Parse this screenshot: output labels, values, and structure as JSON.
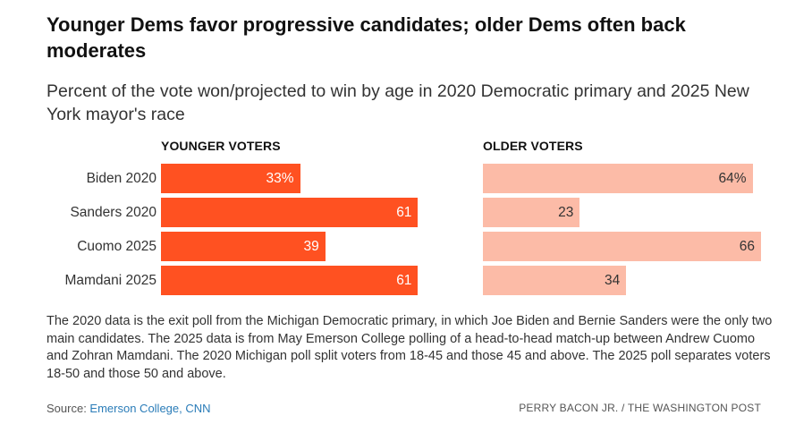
{
  "title": "Younger Dems favor progressive candidates; older Dems often back moderates",
  "subtitle": "Percent of the vote won/projected to win by age in 2020 Democratic primary and 2025 New York mayor's race",
  "footnote": "The 2020 data is the exit poll from the Michigan Democratic primary, in which Joe Biden and Bernie Sanders were the only two main candidates. The 2025 data is from May Emerson College polling of a head-to-head match-up between Andrew Cuomo and Zohran Mamdani. The 2020 Michigan poll split voters from 18-45 and those 45 and above. The 2025 poll separates voters 18-50 and those 50 and above.",
  "source_prefix": "Source: ",
  "source_link": "Emerson College, CNN",
  "credit": "PERRY BACON JR. / THE WASHINGTON POST",
  "colors": {
    "younger": "#ff5121",
    "older": "#fcbba7",
    "link": "#2a7cb8"
  },
  "chart_data": {
    "type": "bar",
    "orientation": "horizontal",
    "categories": [
      "Biden 2020",
      "Sanders 2020",
      "Cuomo 2025",
      "Mamdani 2025"
    ],
    "series": [
      {
        "name": "YOUNGER VOTERS",
        "values": [
          33,
          61,
          39,
          61
        ],
        "labels": [
          "33%",
          "61",
          "39",
          "61"
        ]
      },
      {
        "name": "OLDER VOTERS",
        "values": [
          64,
          23,
          66,
          34
        ],
        "labels": [
          "64%",
          "23",
          "66",
          "34"
        ]
      }
    ],
    "unit": "percent",
    "xlim": [
      0,
      66
    ],
    "grid": false
  }
}
